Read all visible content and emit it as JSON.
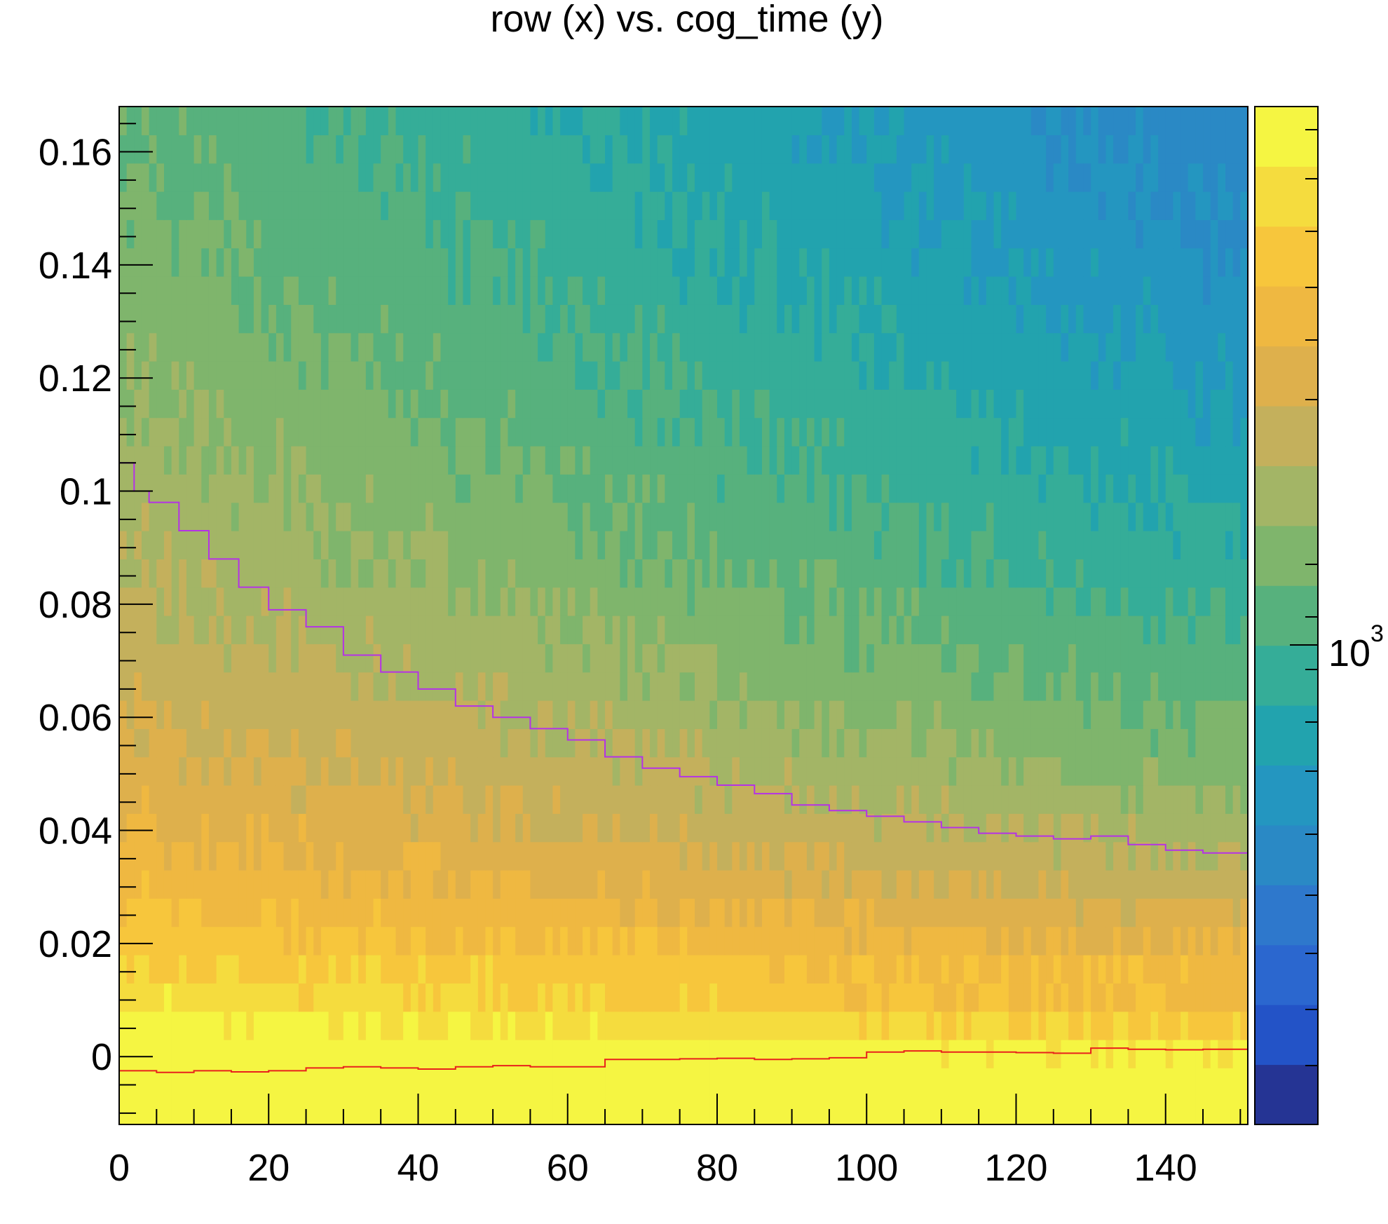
{
  "chart_data": {
    "type": "heatmap",
    "title": "row (x) vs. cog_time (y)",
    "xlabel": "",
    "ylabel": "",
    "xlim": [
      0,
      151
    ],
    "ylim": [
      -0.012,
      0.168
    ],
    "x_ticks": [
      0,
      20,
      40,
      60,
      80,
      100,
      120,
      140
    ],
    "x_tick_labels": [
      "0",
      "20",
      "40",
      "60",
      "80",
      "100",
      "120",
      "140"
    ],
    "y_ticks": [
      0,
      0.02,
      0.04,
      0.06,
      0.08,
      0.1,
      0.12,
      0.14,
      0.16
    ],
    "y_tick_labels": [
      "0",
      "0.02",
      "0.04",
      "0.06",
      "0.08",
      "0.1",
      "0.12",
      "0.14",
      "0.16"
    ],
    "color_scale": "log",
    "colorbar_label": "10",
    "colorbar_label_exponent": "3",
    "grid": false,
    "palette": [
      "#253494",
      "#2353c7",
      "#2b67cf",
      "#2e78cc",
      "#2a89c5",
      "#2496c0",
      "#22a3ae",
      "#35ad98",
      "#57b17d",
      "#7fb56c",
      "#a3b566",
      "#c4b05c",
      "#deb04c",
      "#efb841",
      "#f7c63c",
      "#f5dc3e",
      "#f5f542"
    ],
    "curves": [
      {
        "color": "#b432e6",
        "x": [
          0,
          2,
          4,
          8,
          12,
          16,
          20,
          25,
          30,
          35,
          40,
          45,
          50,
          55,
          60,
          65,
          70,
          75,
          80,
          85,
          90,
          95,
          100,
          105,
          110,
          115,
          120,
          125,
          130,
          135,
          140,
          145,
          151
        ],
        "y": [
          0.105,
          0.1,
          0.098,
          0.093,
          0.088,
          0.083,
          0.079,
          0.076,
          0.071,
          0.068,
          0.065,
          0.062,
          0.06,
          0.058,
          0.056,
          0.053,
          0.051,
          0.0495,
          0.048,
          0.0465,
          0.0445,
          0.0435,
          0.0425,
          0.0415,
          0.0405,
          0.0395,
          0.039,
          0.0385,
          0.039,
          0.0375,
          0.0365,
          0.036,
          0.036
        ]
      },
      {
        "color": "#e8201c",
        "x": [
          0,
          5,
          10,
          15,
          20,
          25,
          30,
          35,
          40,
          45,
          50,
          55,
          60,
          65,
          70,
          75,
          80,
          85,
          90,
          95,
          100,
          105,
          110,
          115,
          120,
          125,
          130,
          135,
          140,
          145,
          151
        ],
        "y": [
          -0.0025,
          -0.0028,
          -0.0025,
          -0.0027,
          -0.0025,
          -0.002,
          -0.0018,
          -0.002,
          -0.0022,
          -0.0018,
          -0.0016,
          -0.0018,
          -0.0018,
          -0.0005,
          -0.0005,
          -0.0004,
          -0.0003,
          -0.0005,
          -0.0004,
          -0.0002,
          0.0008,
          0.001,
          0.0008,
          0.0008,
          0.0007,
          0.0006,
          0.0015,
          0.0013,
          0.0012,
          0.0013,
          0.0014
        ]
      }
    ]
  }
}
